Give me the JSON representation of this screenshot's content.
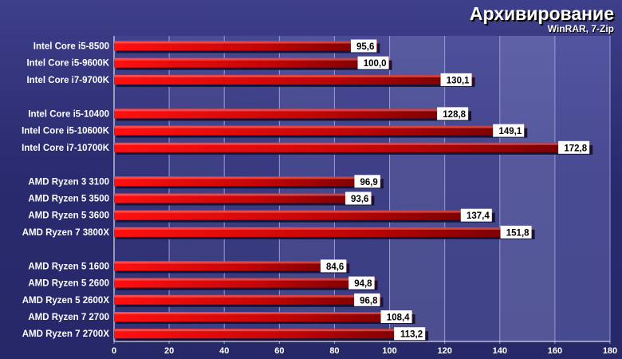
{
  "title": "Архивирование",
  "subtitle": "WinRAR, 7-Zip",
  "colors": {
    "background": "#2b2b72",
    "bar": "#ff1010",
    "bar_dark": "#700000",
    "label_box": "#ffffff"
  },
  "chart_data": {
    "type": "bar",
    "orientation": "horizontal",
    "title": "Архивирование",
    "subtitle": "WinRAR, 7-Zip",
    "xlim": [
      0,
      180
    ],
    "xticks": [
      0,
      20,
      40,
      60,
      80,
      100,
      120,
      140,
      160,
      180
    ],
    "grid": true,
    "legend": "none",
    "groups": [
      {
        "categories": [
          "Intel Core i5-8500",
          "Intel Core i5-9600K",
          "Intel Core i7-9700K"
        ],
        "values": [
          95.6,
          100.0,
          130.1
        ],
        "labels": [
          "95,6",
          "100,0",
          "130,1"
        ]
      },
      {
        "categories": [
          "Intel Core i5-10400",
          "Intel Core i5-10600K",
          "Intel Core i7-10700K"
        ],
        "values": [
          128.8,
          149.1,
          172.8
        ],
        "labels": [
          "128,8",
          "149,1",
          "172,8"
        ]
      },
      {
        "categories": [
          "AMD Ryzen 3 3100",
          "AMD Ryzen 5 3500",
          "AMD Ryzen 5 3600",
          "AMD Ryzen 7 3800X"
        ],
        "values": [
          96.9,
          93.6,
          137.4,
          151.8
        ],
        "labels": [
          "96,9",
          "93,6",
          "137,4",
          "151,8"
        ]
      },
      {
        "categories": [
          "AMD Ryzen 5 1600",
          "AMD Ryzen 5 2600",
          "AMD Ryzen 5 2600X",
          "AMD Ryzen 7 2700",
          "AMD Ryzen 7 2700X"
        ],
        "values": [
          84.6,
          94.8,
          96.8,
          108.4,
          113.2
        ],
        "labels": [
          "84,6",
          "94,8",
          "96,8",
          "108,4",
          "113,2"
        ]
      }
    ]
  }
}
